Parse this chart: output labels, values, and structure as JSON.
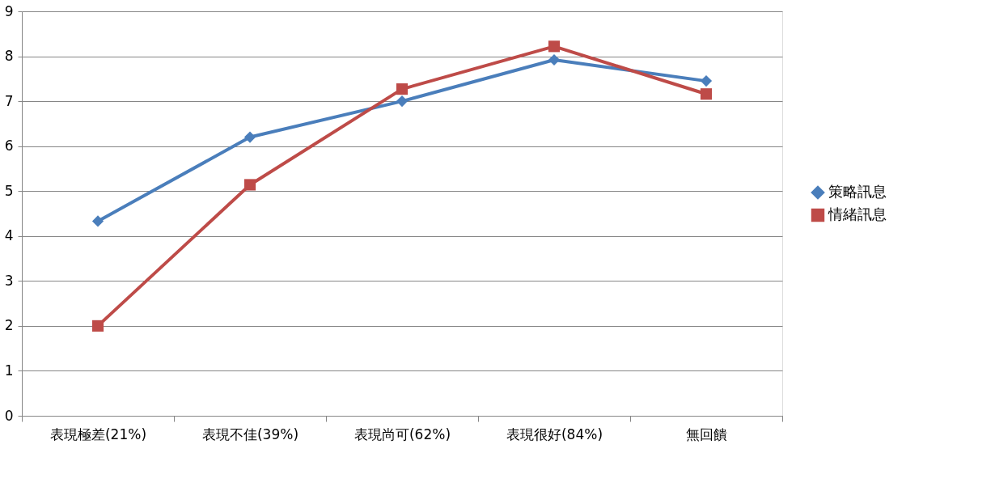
{
  "chart_data": {
    "type": "line",
    "categories": [
      "表現極差(21%)",
      "表現不佳(39%)",
      "表現尚可(62%)",
      "表現很好(84%)",
      "無回饋"
    ],
    "series": [
      {
        "name": "策略訊息",
        "color": "#4a7ebb",
        "marker": "diamond",
        "values": [
          4.33,
          6.2,
          7.0,
          7.92,
          7.45
        ]
      },
      {
        "name": "情緒訊息",
        "color": "#be4b48",
        "marker": "square",
        "values": [
          2.0,
          5.14,
          7.27,
          8.22,
          7.16
        ]
      }
    ],
    "ylim": [
      0,
      9
    ],
    "yticks": [
      0,
      1,
      2,
      3,
      4,
      5,
      6,
      7,
      8,
      9
    ],
    "grid": "y",
    "legend": "right",
    "line_style": "solid"
  }
}
